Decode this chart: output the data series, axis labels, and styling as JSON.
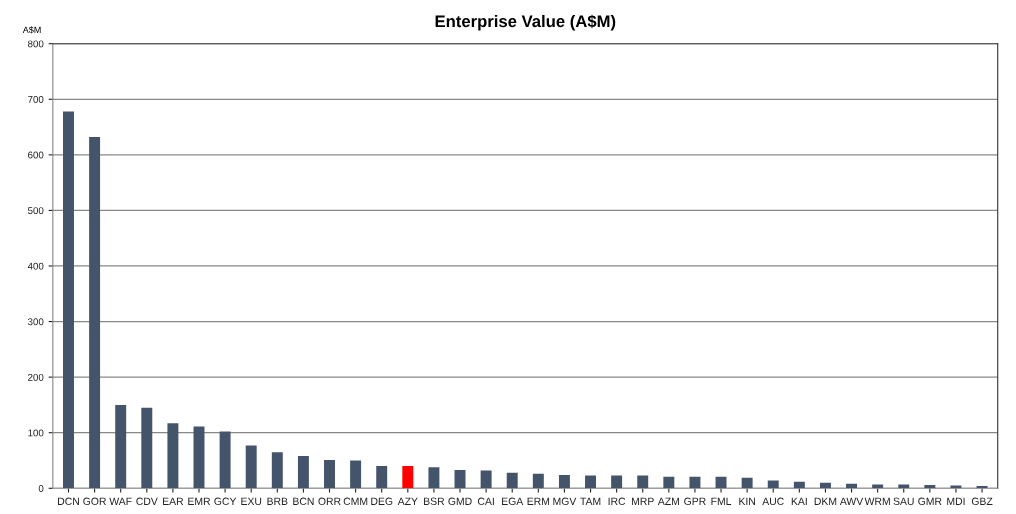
{
  "chart_data": {
    "type": "bar",
    "title": "Enterprise Value (A$M)",
    "ylabel": "A$M",
    "categories": [
      "DCN",
      "GOR",
      "WAF",
      "CDV",
      "EAR",
      "EMR",
      "GCY",
      "EXU",
      "BRB",
      "BCN",
      "ORR",
      "CMM",
      "DEG",
      "AZY",
      "BSR",
      "GMD",
      "CAI",
      "EGA",
      "ERM",
      "MGV",
      "TAM",
      "IRC",
      "MRP",
      "AZM",
      "GPR",
      "FML",
      "KIN",
      "AUC",
      "KAI",
      "DKM",
      "AWV",
      "WRM",
      "SAU",
      "GMR",
      "MDI",
      "GBZ"
    ],
    "values": [
      678,
      632,
      150,
      145,
      117,
      111,
      102,
      77,
      65,
      58,
      51,
      50,
      40,
      40,
      38,
      33,
      32,
      28,
      26,
      24,
      23,
      23,
      23,
      21,
      21,
      21,
      19,
      14,
      12,
      10,
      8,
      7,
      7,
      6,
      5,
      4
    ],
    "colors": [
      "#44546a",
      "#44546a",
      "#44546a",
      "#44546a",
      "#44546a",
      "#44546a",
      "#44546a",
      "#44546a",
      "#44546a",
      "#44546a",
      "#44546a",
      "#44546a",
      "#44546a",
      "#ff0000",
      "#44546a",
      "#44546a",
      "#44546a",
      "#44546a",
      "#44546a",
      "#44546a",
      "#44546a",
      "#44546a",
      "#44546a",
      "#44546a",
      "#44546a",
      "#44546a",
      "#44546a",
      "#44546a",
      "#44546a",
      "#44546a",
      "#44546a",
      "#44546a",
      "#44546a",
      "#44546a",
      "#44546a",
      "#44546a"
    ],
    "ylim": [
      0,
      800
    ],
    "yticks": [
      0,
      100,
      200,
      300,
      400,
      500,
      600,
      700,
      800
    ],
    "grid": "y"
  }
}
